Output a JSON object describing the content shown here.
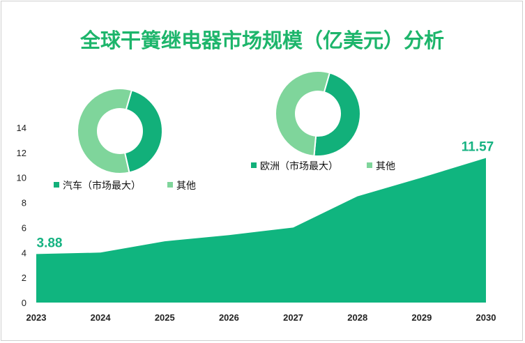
{
  "title": "全球干簧继电器市场规模（亿美元）分析",
  "colors": {
    "area": "#10b57f",
    "major": "#12b07a",
    "other": "#7fd59b",
    "title": "#1db56b"
  },
  "chart_data": {
    "type": "area",
    "title": "全球干簧继电器市场规模（亿美元）分析",
    "categories": [
      "2023",
      "2024",
      "2025",
      "2026",
      "2027",
      "2028",
      "2029",
      "2030"
    ],
    "series": [
      {
        "values": [
          3.88,
          4.0,
          4.9,
          5.4,
          6.0,
          8.5,
          10.0,
          11.57
        ]
      }
    ],
    "data_labels": [
      {
        "category": "2023",
        "text": "3.88"
      },
      {
        "category": "2030",
        "text": "11.57"
      }
    ],
    "ylim": [
      0,
      14
    ],
    "yticks": [
      "0",
      "2",
      "4",
      "6",
      "8",
      "10",
      "12",
      "14"
    ],
    "grid": false,
    "insets": [
      {
        "type": "pie",
        "subtype": "donut",
        "slices": [
          {
            "label": "汽车（市场最大）",
            "value": 42,
            "color": "#12b07a"
          },
          {
            "label": "其他",
            "value": 58,
            "color": "#7fd59b"
          }
        ]
      },
      {
        "type": "pie",
        "subtype": "donut",
        "slices": [
          {
            "label": "欧洲（市场最大）",
            "value": 47,
            "color": "#12b07a"
          },
          {
            "label": "其他",
            "value": 53,
            "color": "#7fd59b"
          }
        ]
      }
    ]
  }
}
